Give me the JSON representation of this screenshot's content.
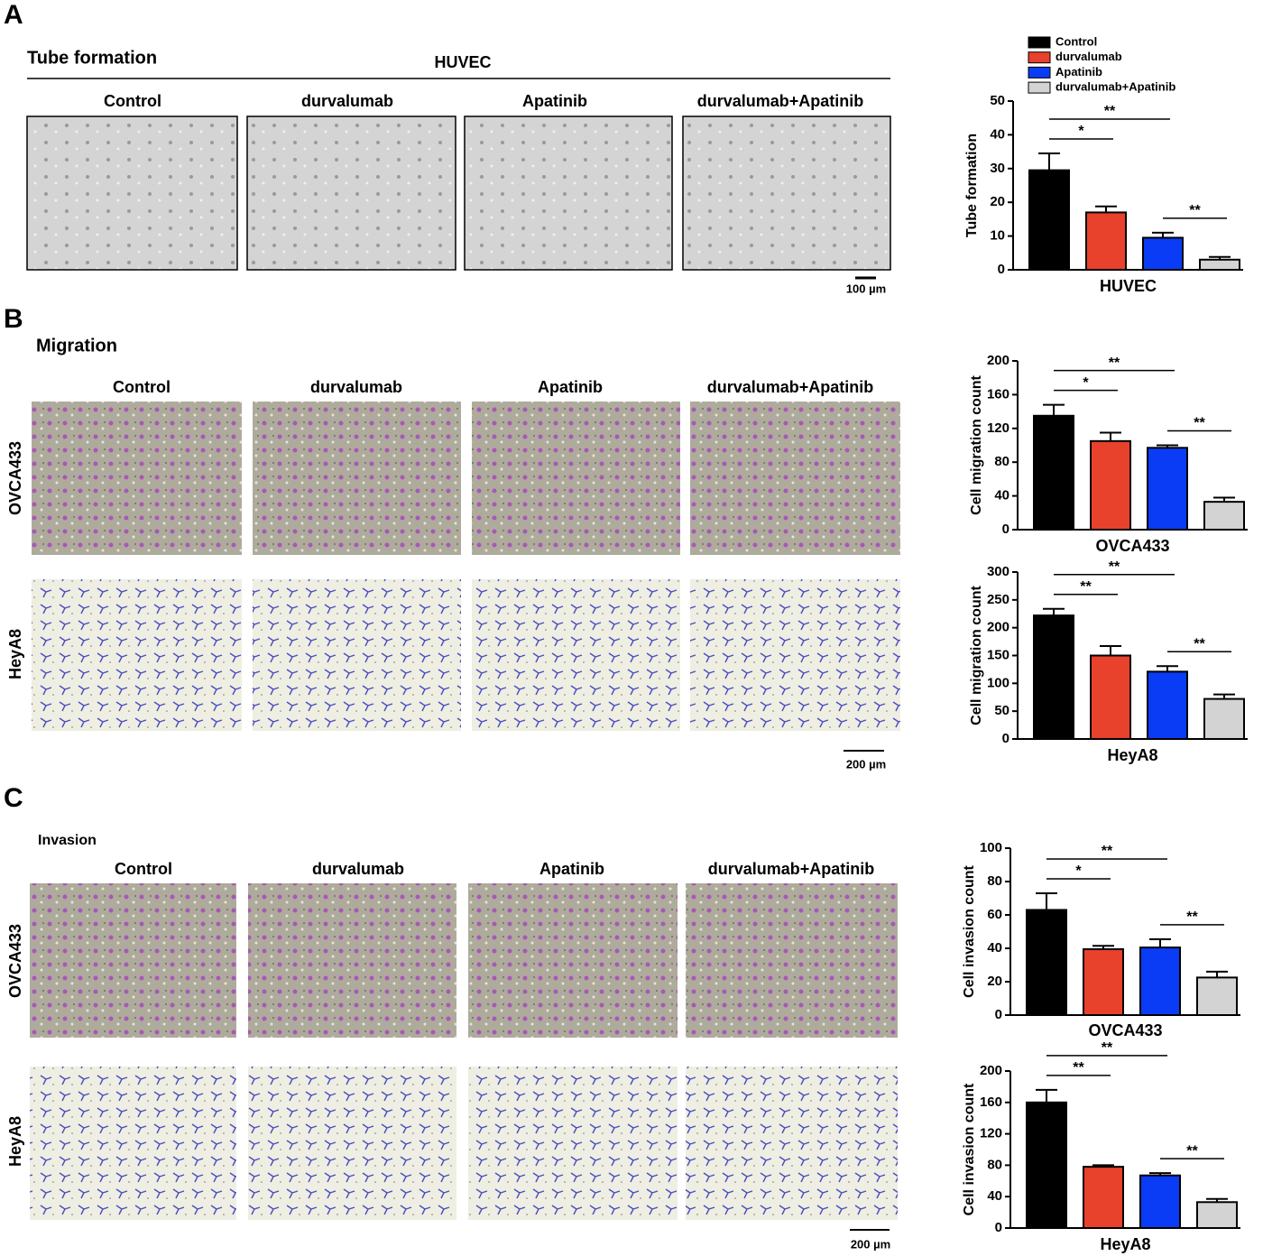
{
  "panels": [
    {
      "letter": "A",
      "title": "Tube formation",
      "header": "HUVEC",
      "columns": [
        "Control",
        "durvalumab",
        "Apatinib",
        "durvalumab+Apatinib"
      ],
      "scale_bar": "100 µm"
    },
    {
      "letter": "B",
      "title": "Migration",
      "columns": [
        "Control",
        "durvalumab",
        "Apatinib",
        "durvalumab+Apatinib"
      ],
      "rows": [
        "OVCA433",
        "HeyA8"
      ],
      "scale_bar": "200 µm"
    },
    {
      "letter": "C",
      "title": "Invasion",
      "columns": [
        "Control",
        "durvalumab",
        "Apatinib",
        "durvalumab+Apatinib"
      ],
      "rows": [
        "OVCA433",
        "HeyA8"
      ],
      "scale_bar": "200 µm"
    }
  ],
  "legend": {
    "names": [
      "Control",
      "durvalumab",
      "Apatinib",
      "durvalumab+Apatinib"
    ],
    "colors": [
      "#000000",
      "#e8412c",
      "#0a3cf5",
      "#d3d3d3"
    ]
  },
  "chart_data": [
    {
      "type": "bar",
      "xlabel": "HUVEC",
      "ylabel": "Tube formation",
      "values": [
        29.5,
        17,
        9.5,
        3
      ],
      "errors": [
        5,
        1.8,
        1.5,
        0.8
      ],
      "ylim": [
        0,
        50
      ],
      "yticks": [
        0,
        10,
        20,
        30,
        40,
        50
      ],
      "annotations": [
        {
          "label": "*",
          "from": 0,
          "to": 1
        },
        {
          "label": "**",
          "from": 0,
          "to": 2
        },
        {
          "label": "**",
          "from": 2,
          "to": 3
        }
      ]
    },
    {
      "type": "bar",
      "xlabel": "OVCA433",
      "ylabel": "Cell migration count",
      "values": [
        135,
        105,
        97,
        33
      ],
      "errors": [
        13,
        10,
        3,
        5
      ],
      "ylim": [
        0,
        200
      ],
      "yticks": [
        0,
        40,
        80,
        120,
        160,
        200
      ],
      "annotations": [
        {
          "label": "*",
          "from": 0,
          "to": 1
        },
        {
          "label": "**",
          "from": 0,
          "to": 2
        },
        {
          "label": "**",
          "from": 2,
          "to": 3
        }
      ]
    },
    {
      "type": "bar",
      "xlabel": "HeyA8",
      "ylabel": "Cell migration count",
      "values": [
        222,
        150,
        121,
        72
      ],
      "errors": [
        12,
        17,
        10,
        8
      ],
      "ylim": [
        0,
        300
      ],
      "yticks": [
        0,
        50,
        100,
        150,
        200,
        250,
        300
      ],
      "annotations": [
        {
          "label": "**",
          "from": 0,
          "to": 1
        },
        {
          "label": "**",
          "from": 0,
          "to": 2
        },
        {
          "label": "**",
          "from": 2,
          "to": 3
        }
      ]
    },
    {
      "type": "bar",
      "xlabel": "OVCA433",
      "ylabel": "Cell invasion count",
      "values": [
        63,
        39.5,
        40.5,
        22.5
      ],
      "errors": [
        10,
        2,
        5,
        3.5
      ],
      "ylim": [
        0,
        100
      ],
      "yticks": [
        0,
        20,
        40,
        60,
        80,
        100
      ],
      "annotations": [
        {
          "label": "*",
          "from": 0,
          "to": 1
        },
        {
          "label": "**",
          "from": 0,
          "to": 2
        },
        {
          "label": "**",
          "from": 2,
          "to": 3
        }
      ]
    },
    {
      "type": "bar",
      "xlabel": "HeyA8",
      "ylabel": "Cell invasion count",
      "values": [
        160,
        78,
        67,
        33
      ],
      "errors": [
        16,
        2,
        3,
        4
      ],
      "ylim": [
        0,
        200
      ],
      "yticks": [
        0,
        40,
        80,
        120,
        160,
        200
      ],
      "annotations": [
        {
          "label": "**",
          "from": 0,
          "to": 1
        },
        {
          "label": "**",
          "from": 0,
          "to": 2
        },
        {
          "label": "**",
          "from": 2,
          "to": 3
        }
      ]
    }
  ]
}
